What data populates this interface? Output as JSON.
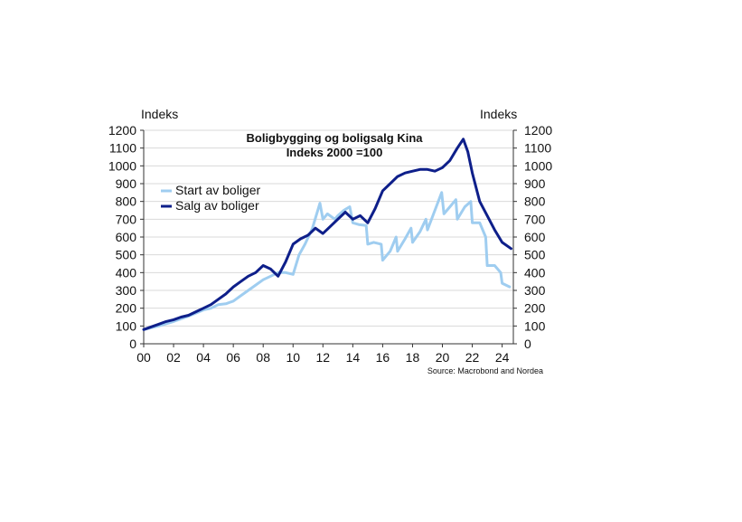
{
  "chart_data": {
    "type": "line",
    "title": "Boligbygging og boligsalg Kina",
    "subtitle": "Indeks 2000 =100",
    "ylabel_left": "Indeks",
    "ylabel_right": "Indeks",
    "source": "Source: Macrobond and Nordea",
    "xlim": [
      2000,
      2024.75
    ],
    "ylim": [
      0,
      1200
    ],
    "x_tick_labels": [
      "00",
      "02",
      "04",
      "06",
      "08",
      "10",
      "12",
      "14",
      "16",
      "18",
      "20",
      "22",
      "24"
    ],
    "y_tick_labels": [
      "0",
      "100",
      "200",
      "300",
      "400",
      "500",
      "600",
      "700",
      "800",
      "900",
      "1000",
      "1100",
      "1200"
    ],
    "grid": true,
    "legend_position": "upper-left",
    "series": [
      {
        "name": "Start av boliger",
        "color": "#9fcdf0",
        "x": [
          2000,
          2001,
          2002,
          2003,
          2004,
          2004.5,
          2005,
          2005.5,
          2006,
          2006.5,
          2007,
          2007.5,
          2008,
          2008.5,
          2009,
          2009.5,
          2010,
          2010.4,
          2010.8,
          2011.3,
          2011.8,
          2012.0,
          2012.3,
          2012.8,
          2013.0,
          2013.4,
          2013.8,
          2014.0,
          2014.4,
          2014.9,
          2015.0,
          2015.4,
          2015.9,
          2016.0,
          2016.5,
          2016.9,
          2017.0,
          2017.5,
          2017.9,
          2018.0,
          2018.5,
          2018.9,
          2019.0,
          2019.5,
          2019.95,
          2020.1,
          2020.5,
          2020.9,
          2021.0,
          2021.5,
          2021.9,
          2022.0,
          2022.5,
          2022.9,
          2023.0,
          2023.5,
          2023.9,
          2024.0,
          2024.5
        ],
        "y": [
          80,
          100,
          125,
          155,
          190,
          200,
          220,
          225,
          240,
          270,
          300,
          330,
          360,
          380,
          400,
          400,
          390,
          500,
          560,
          650,
          790,
          700,
          730,
          700,
          720,
          750,
          770,
          680,
          670,
          665,
          560,
          570,
          560,
          470,
          520,
          600,
          520,
          590,
          650,
          570,
          630,
          700,
          640,
          750,
          850,
          730,
          770,
          810,
          700,
          770,
          800,
          680,
          680,
          600,
          440,
          440,
          400,
          340,
          320
        ]
      },
      {
        "name": "Salg av boliger",
        "color": "#0e1f8a",
        "x": [
          2000,
          2000.5,
          2001,
          2001.5,
          2002,
          2002.5,
          2003,
          2003.5,
          2004,
          2004.5,
          2005,
          2005.5,
          2006,
          2006.5,
          2007,
          2007.5,
          2008,
          2008.5,
          2009,
          2009.5,
          2010,
          2010.5,
          2011,
          2011.5,
          2012,
          2012.5,
          2013,
          2013.5,
          2014,
          2014.5,
          2015,
          2015.5,
          2016,
          2016.5,
          2017,
          2017.5,
          2018,
          2018.5,
          2019,
          2019.5,
          2020,
          2020.5,
          2021,
          2021.4,
          2021.7,
          2022,
          2022.5,
          2023,
          2023.5,
          2024,
          2024.6
        ],
        "y": [
          80,
          95,
          110,
          125,
          135,
          150,
          160,
          180,
          200,
          220,
          250,
          280,
          320,
          350,
          380,
          400,
          440,
          420,
          380,
          460,
          560,
          590,
          610,
          650,
          620,
          660,
          700,
          740,
          700,
          720,
          680,
          760,
          860,
          900,
          940,
          960,
          970,
          980,
          980,
          970,
          990,
          1030,
          1100,
          1150,
          1080,
          960,
          800,
          720,
          640,
          570,
          535
        ]
      }
    ]
  }
}
